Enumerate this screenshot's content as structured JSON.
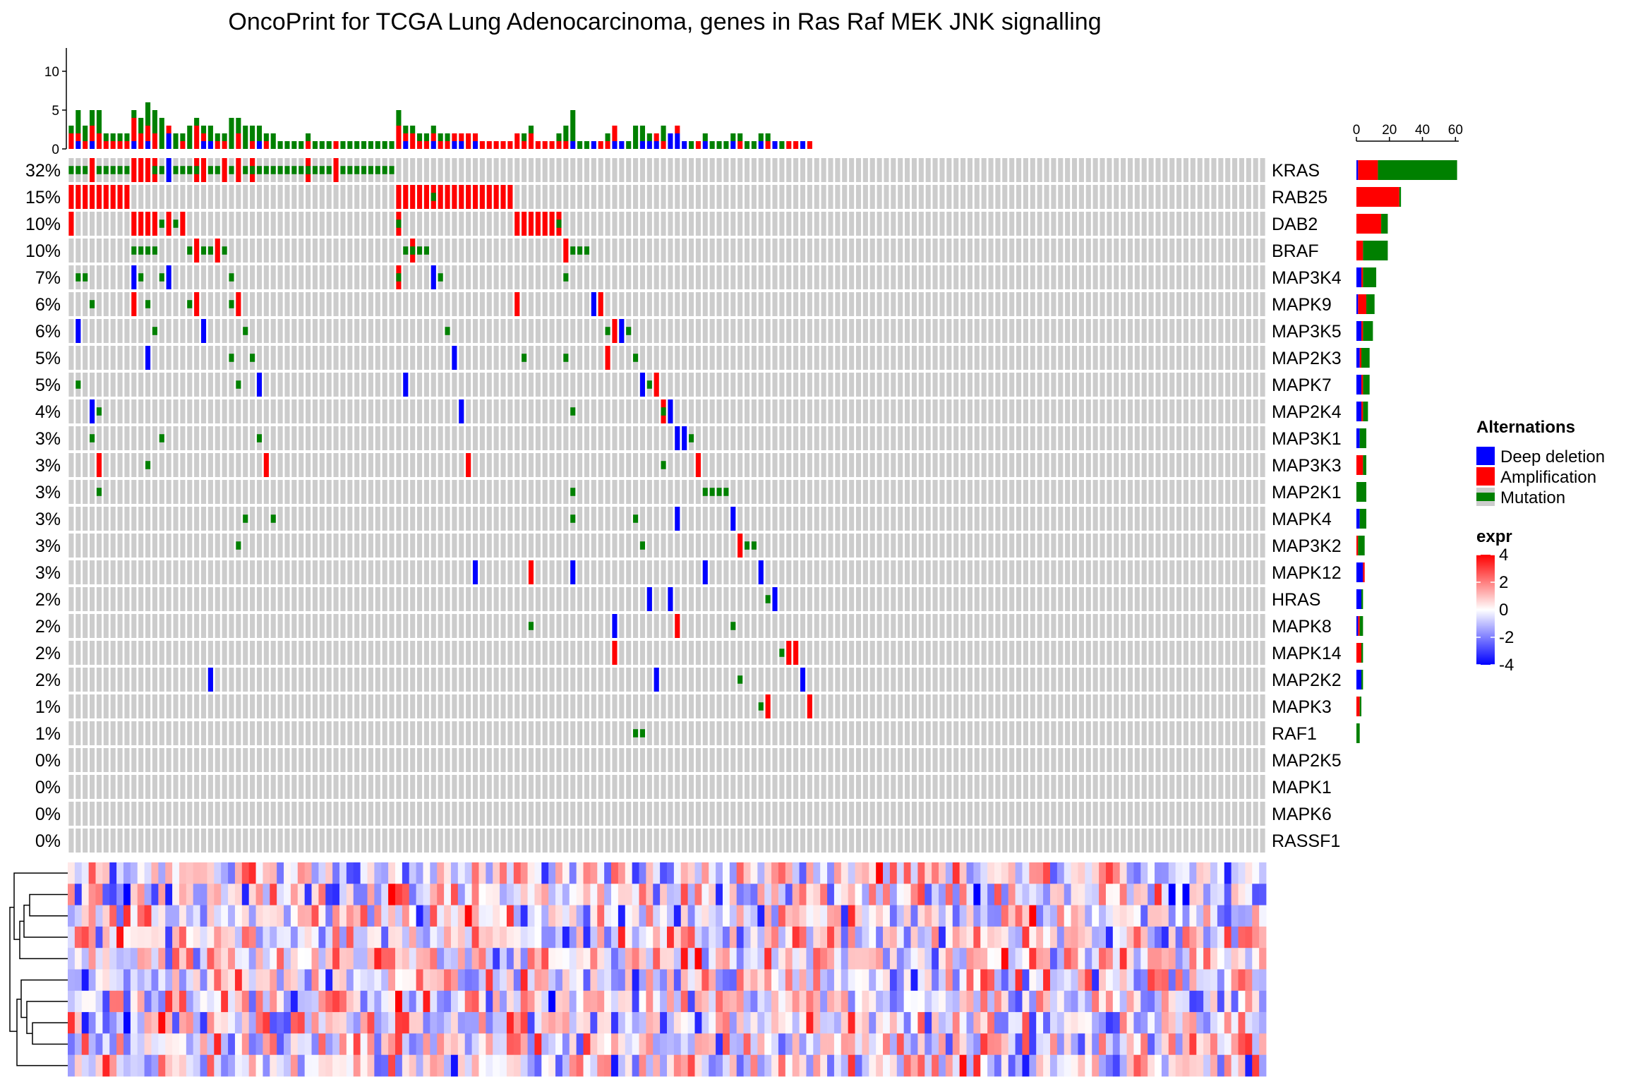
{
  "chart_data": {
    "type": "heatmap",
    "subtype": "oncoprint",
    "title": "OncoPrint for TCGA Lung Adenocarcinoma, genes in Ras Raf MEK JNK signalling",
    "n_samples": 172,
    "colors": {
      "background": "#CCCCCC",
      "deep_deletion": "#0000FF",
      "amplification": "#FF0000",
      "mutation": "#008000"
    },
    "top_barplot": {
      "axis_ticks": [
        "0",
        "5",
        "10"
      ],
      "ylim": [
        0,
        13
      ]
    },
    "right_barplot": {
      "axis_ticks": [
        "0",
        "20",
        "40",
        "60"
      ],
      "xlim": [
        0,
        62
      ]
    },
    "genes": [
      {
        "name": "KRAS",
        "pct": "32%",
        "del": 1,
        "amp": 12,
        "mut": 48
      },
      {
        "name": "RAB25",
        "pct": "15%",
        "del": 0,
        "amp": 26,
        "mut": 1
      },
      {
        "name": "DAB2",
        "pct": "10%",
        "del": 0,
        "amp": 15,
        "mut": 4
      },
      {
        "name": "BRAF",
        "pct": "10%",
        "del": 0,
        "amp": 4,
        "mut": 15
      },
      {
        "name": "MAP3K4",
        "pct": "7%",
        "del": 3,
        "amp": 1,
        "mut": 8
      },
      {
        "name": "MAPK9",
        "pct": "6%",
        "del": 1,
        "amp": 5,
        "mut": 5
      },
      {
        "name": "MAP3K5",
        "pct": "6%",
        "del": 3,
        "amp": 1,
        "mut": 6
      },
      {
        "name": "MAP2K3",
        "pct": "5%",
        "del": 2,
        "amp": 1,
        "mut": 5
      },
      {
        "name": "MAPK7",
        "pct": "5%",
        "del": 3,
        "amp": 1,
        "mut": 4
      },
      {
        "name": "MAP2K4",
        "pct": "4%",
        "del": 3,
        "amp": 1,
        "mut": 3
      },
      {
        "name": "MAP3K1",
        "pct": "3%",
        "del": 2,
        "amp": 0,
        "mut": 4
      },
      {
        "name": "MAP3K3",
        "pct": "3%",
        "del": 0,
        "amp": 4,
        "mut": 2
      },
      {
        "name": "MAP2K1",
        "pct": "3%",
        "del": 0,
        "amp": 0,
        "mut": 6
      },
      {
        "name": "MAPK4",
        "pct": "3%",
        "del": 2,
        "amp": 0,
        "mut": 4
      },
      {
        "name": "MAP3K2",
        "pct": "3%",
        "del": 0,
        "amp": 1,
        "mut": 4
      },
      {
        "name": "MAPK12",
        "pct": "3%",
        "del": 4,
        "amp": 1,
        "mut": 0
      },
      {
        "name": "HRAS",
        "pct": "2%",
        "del": 3,
        "amp": 0,
        "mut": 1
      },
      {
        "name": "MAPK8",
        "pct": "2%",
        "del": 1,
        "amp": 1,
        "mut": 2
      },
      {
        "name": "MAPK14",
        "pct": "2%",
        "del": 0,
        "amp": 3,
        "mut": 1
      },
      {
        "name": "MAP2K2",
        "pct": "2%",
        "del": 3,
        "amp": 0,
        "mut": 1
      },
      {
        "name": "MAPK3",
        "pct": "1%",
        "del": 0,
        "amp": 2,
        "mut": 1
      },
      {
        "name": "RAF1",
        "pct": "1%",
        "del": 0,
        "amp": 0,
        "mut": 2
      },
      {
        "name": "MAP2K5",
        "pct": "0%",
        "del": 0,
        "amp": 0,
        "mut": 0
      },
      {
        "name": "MAPK1",
        "pct": "0%",
        "del": 0,
        "amp": 0,
        "mut": 0
      },
      {
        "name": "MAPK6",
        "pct": "0%",
        "del": 0,
        "amp": 0,
        "mut": 0
      },
      {
        "name": "RASSF1",
        "pct": "0%",
        "del": 0,
        "amp": 0,
        "mut": 0
      }
    ],
    "legend": {
      "alterations_title": "Alternations",
      "alterations": [
        {
          "label": "Deep deletion",
          "color": "#0000FF"
        },
        {
          "label": "Amplification",
          "color": "#FF0000"
        },
        {
          "label": "Mutation",
          "color": "#008000"
        }
      ],
      "expr_title": "expr",
      "expr_ticks": [
        "4",
        "2",
        "0",
        "-2",
        "-4"
      ],
      "expr_range": [
        -4,
        4
      ],
      "expr_colors": [
        "#0000FF",
        "#FFFFFF",
        "#FF0000"
      ]
    },
    "expr_heatmap": {
      "rows": 10,
      "cols": 172,
      "range": [
        -4,
        4
      ],
      "dendrogram": "rows"
    }
  }
}
